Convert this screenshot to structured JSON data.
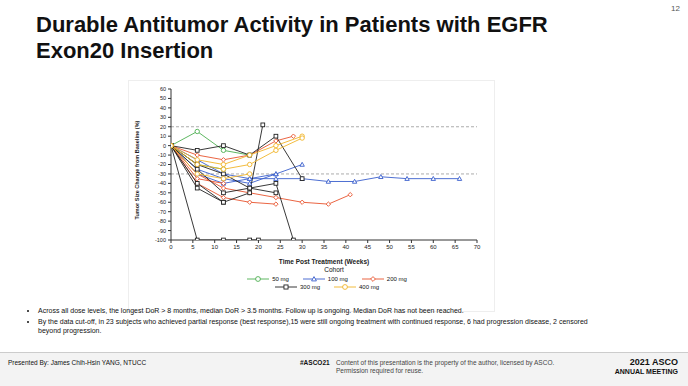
{
  "slide": {
    "title": "Durable Antitumor Activity in Patients with EGFR Exon20 Insertion",
    "page": "12",
    "bullets": [
      "Across all dose levels, the longest DoR > 8 months, median DoR > 3.5 months. Follow up is ongoing. Median DoR has not been reached.",
      "By the data cut-off, in 23 subjects who achieved partial response (best response),15 were still ongoing treatment with continued response, 6 had progression disease, 2 censored beyond progression."
    ],
    "footer": {
      "presenter": "Presented By: James Chih-Hsin YANG, NTUCC",
      "hashtag": "#ASCO21",
      "notice": "Content of this presentation is the property of the author, licensed by ASCO. Permission required for reuse.",
      "meeting": [
        "2021 ASCO",
        "ANNUAL MEETING"
      ]
    }
  },
  "chart_data": {
    "type": "line",
    "x_label": "Time Post Treatment (Weeks)",
    "y_label": "Tumor Size Change from Baseline (%)",
    "xlim": [
      0,
      70
    ],
    "xticks": [
      0,
      5,
      10,
      15,
      20,
      25,
      30,
      35,
      40,
      45,
      50,
      55,
      60,
      65,
      70
    ],
    "ylim": [
      -100,
      60
    ],
    "yticks": [
      -100,
      -90,
      -80,
      -70,
      -60,
      -50,
      -40,
      -30,
      -20,
      -10,
      0,
      10,
      20,
      30,
      40,
      50,
      60
    ],
    "grid": false,
    "reference_lines": [
      20,
      -30
    ],
    "legend": "bottom",
    "legend_title": "Cohort",
    "series": [
      {
        "name": "50 mg",
        "color": "#4caf50",
        "marker": "circle",
        "patients": [
          {
            "x": [
              0,
              6,
              12,
              18
            ],
            "values": [
              0,
              15,
              -5,
              -10
            ]
          },
          {
            "x": [
              0,
              6,
              12
            ],
            "values": [
              0,
              -20,
              -25
            ]
          }
        ]
      },
      {
        "name": "100 mg",
        "color": "#3a5fcd",
        "marker": "triangle",
        "patients": [
          {
            "x": [
              0,
              6,
              12,
              18,
              24,
              30,
              36,
              42,
              48,
              54,
              60,
              66
            ],
            "values": [
              0,
              -30,
              -40,
              -35,
              -35,
              -35,
              -38,
              -38,
              -33,
              -35,
              -35,
              -35
            ]
          },
          {
            "x": [
              0,
              6,
              12,
              18,
              24
            ],
            "values": [
              0,
              -15,
              -30,
              -35,
              -30
            ]
          },
          {
            "x": [
              0,
              6,
              12,
              18,
              24,
              30
            ],
            "values": [
              0,
              -25,
              -35,
              -40,
              -30,
              -20
            ]
          }
        ]
      },
      {
        "name": "200 mg",
        "color": "#e8542e",
        "marker": "diamond",
        "patients": [
          {
            "x": [
              0,
              6,
              12,
              18,
              24,
              30,
              36,
              41
            ],
            "values": [
              0,
              -30,
              -45,
              -50,
              -55,
              -60,
              -62,
              -52
            ]
          },
          {
            "x": [
              0,
              6,
              12,
              18,
              24
            ],
            "values": [
              0,
              -40,
              -55,
              -60,
              -62
            ]
          },
          {
            "x": [
              0,
              6,
              12,
              18,
              24,
              28
            ],
            "values": [
              0,
              -10,
              -15,
              -10,
              5,
              10
            ]
          },
          {
            "x": [
              0,
              6,
              12
            ],
            "values": [
              0,
              -35,
              -40
            ]
          }
        ]
      },
      {
        "name": "300 mg",
        "color": "#222222",
        "marker": "square",
        "patients": [
          {
            "x": [
              0,
              6,
              12,
              18,
              20
            ],
            "values": [
              0,
              -100,
              -100,
              -100,
              -100
            ]
          },
          {
            "x": [
              0,
              6,
              12,
              18,
              21
            ],
            "values": [
              0,
              -40,
              -60,
              -50,
              22
            ]
          },
          {
            "x": [
              0,
              6,
              12,
              18,
              24,
              28
            ],
            "values": [
              0,
              -20,
              -30,
              -45,
              -40,
              -100
            ]
          },
          {
            "x": [
              0,
              6,
              12,
              18,
              24
            ],
            "values": [
              0,
              -25,
              -50,
              -45,
              -50
            ]
          },
          {
            "x": [
              0,
              6,
              12,
              18,
              24,
              30
            ],
            "values": [
              0,
              -5,
              0,
              -10,
              10,
              -35
            ]
          },
          {
            "x": [
              0,
              6,
              12
            ],
            "values": [
              0,
              -45,
              -60
            ]
          }
        ]
      },
      {
        "name": "400 mg",
        "color": "#f0b429",
        "marker": "circle",
        "patients": [
          {
            "x": [
              0,
              6,
              12,
              18,
              24,
              30
            ],
            "values": [
              0,
              -15,
              -20,
              -10,
              0,
              10
            ]
          },
          {
            "x": [
              0,
              6,
              12,
              18,
              24,
              30
            ],
            "values": [
              0,
              -20,
              -25,
              -20,
              -5,
              8
            ]
          },
          {
            "x": [
              0,
              6,
              12,
              18
            ],
            "values": [
              0,
              -30,
              -35,
              -30
            ]
          }
        ]
      }
    ]
  }
}
